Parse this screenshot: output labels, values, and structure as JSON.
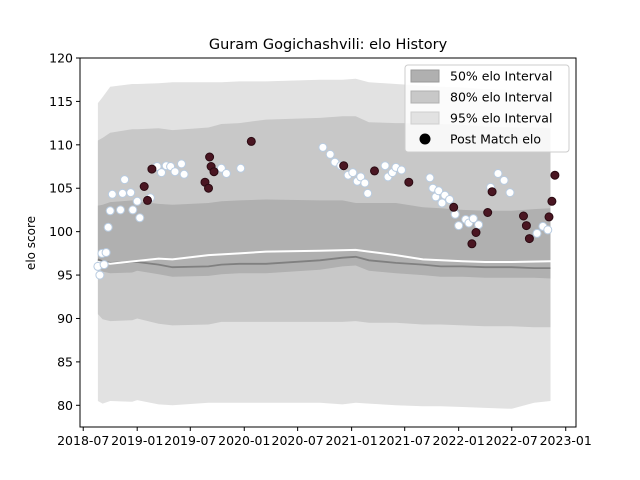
{
  "chart_data": {
    "type": "area",
    "title": "Guram Gogichashvili: elo History",
    "xlabel": "",
    "ylabel": "elo score",
    "xlim": [
      "2018-06-20",
      "2023-02-05"
    ],
    "ylim": [
      77.5,
      120
    ],
    "x_ticks": [
      "2018-07",
      "2019-01",
      "2019-07",
      "2020-01",
      "2020-07",
      "2021-01",
      "2021-07",
      "2022-01",
      "2022-07",
      "2023-01"
    ],
    "y_ticks": [
      80,
      85,
      90,
      95,
      100,
      105,
      110,
      115,
      120
    ],
    "legend_position": "top-right",
    "legend": [
      {
        "label": "50% elo Interval",
        "color": "#b0b0b0"
      },
      {
        "label": "80% elo Interval",
        "color": "#c8c8c8"
      },
      {
        "label": "95% elo Interval",
        "color": "#e2e2e2"
      },
      {
        "label": "Post Match elo",
        "color": "#000000"
      }
    ],
    "bands": {
      "x": [
        "2018-08-20",
        "2018-09-05",
        "2018-10-01",
        "2018-12-15",
        "2019-01-01",
        "2019-03-15",
        "2019-05-01",
        "2019-09-01",
        "2019-10-15",
        "2019-12-15",
        "2020-03-15",
        "2020-09-15",
        "2020-12-01",
        "2021-01-15",
        "2021-03-01",
        "2021-06-01",
        "2021-09-01",
        "2021-11-01",
        "2022-01-15",
        "2022-04-01",
        "2022-07-01",
        "2022-09-15",
        "2022-11-10"
      ],
      "center": [
        96.8,
        96.6,
        96.4,
        96.5,
        96.5,
        96.2,
        95.9,
        96.0,
        96.2,
        96.3,
        96.3,
        96.7,
        97.0,
        97.1,
        96.7,
        96.4,
        96.2,
        96.0,
        96.0,
        95.9,
        95.9,
        95.8,
        95.8
      ],
      "q50_low": [
        95.8,
        95.4,
        95.2,
        95.3,
        95.5,
        95.1,
        94.8,
        94.9,
        95.1,
        95.2,
        95.2,
        95.6,
        96.0,
        96.1,
        95.5,
        95.2,
        95.0,
        94.8,
        94.8,
        94.7,
        94.7,
        94.7,
        94.6
      ],
      "q50_high": [
        103.0,
        103.1,
        103.4,
        103.6,
        103.5,
        103.2,
        103.1,
        103.3,
        103.5,
        103.6,
        103.7,
        103.6,
        103.6,
        103.3,
        103.3,
        103.3,
        102.8,
        102.7,
        102.5,
        102.4,
        102.4,
        102.6,
        102.7
      ],
      "q80_low": [
        90.5,
        89.9,
        89.7,
        89.8,
        90.0,
        89.4,
        89.2,
        89.3,
        89.6,
        89.6,
        89.6,
        89.6,
        89.6,
        89.7,
        89.5,
        89.5,
        89.3,
        89.3,
        89.2,
        89.1,
        89.1,
        89.0,
        89.0
      ],
      "q80_high": [
        110.5,
        110.8,
        111.4,
        111.8,
        111.8,
        111.9,
        111.7,
        112.0,
        112.4,
        112.5,
        112.9,
        113.1,
        113.3,
        113.3,
        112.6,
        112.5,
        112.5,
        112.4,
        112.3,
        112.1,
        112.0,
        112.0,
        111.9
      ],
      "q95_low": [
        85.0,
        84.6,
        84.6,
        84.7,
        84.8,
        84.2,
        83.9,
        84.2,
        84.3,
        84.3,
        84.4,
        84.5,
        84.4,
        84.5,
        84.3,
        84.1,
        83.9,
        83.8,
        83.7,
        83.7,
        83.7,
        83.8,
        83.8
      ],
      "q95_high": [
        114.8,
        115.5,
        116.7,
        117.0,
        117.0,
        117.1,
        117.2,
        117.2,
        117.2,
        117.3,
        117.3,
        117.5,
        117.5,
        117.6,
        117.2,
        117.0,
        116.8,
        116.7,
        116.6,
        116.4,
        116.3,
        116.3,
        116.2
      ],
      "q95_low_dips": [
        80.5,
        80.2,
        80.5,
        80.4,
        80.6,
        80.1,
        80.0,
        80.3,
        80.3,
        80.3,
        80.3,
        80.3,
        80.1,
        80.3,
        80.2,
        80.0,
        79.9,
        79.9,
        79.8,
        79.7,
        79.6,
        80.3,
        80.5
      ]
    },
    "mean_line": {
      "x": [
        "2018-08-20",
        "2018-10-01",
        "2019-03-15",
        "2019-05-01",
        "2019-09-01",
        "2019-12-15",
        "2020-03-15",
        "2020-09-15",
        "2021-01-15",
        "2021-03-01",
        "2021-06-01",
        "2021-09-01",
        "2022-01-15",
        "2022-04-01",
        "2022-07-01",
        "2022-11-10"
      ],
      "values": [
        96.5,
        96.3,
        96.9,
        96.8,
        97.3,
        97.5,
        97.7,
        97.8,
        97.9,
        97.7,
        97.3,
        96.8,
        96.6,
        96.5,
        96.5,
        96.6
      ]
    },
    "series": [
      {
        "kind": "win",
        "points": [
          [
            "2018-08-20",
            96.0
          ],
          [
            "2018-08-27",
            95.0
          ],
          [
            "2018-09-03",
            97.5
          ],
          [
            "2018-09-10",
            96.2
          ],
          [
            "2018-09-17",
            97.6
          ],
          [
            "2018-09-24",
            100.5
          ],
          [
            "2018-10-01",
            102.4
          ],
          [
            "2018-10-08",
            104.3
          ],
          [
            "2018-11-05",
            102.5
          ],
          [
            "2018-11-12",
            104.4
          ],
          [
            "2018-11-19",
            106.0
          ],
          [
            "2018-12-10",
            104.5
          ],
          [
            "2018-12-17",
            102.5
          ],
          [
            "2019-01-01",
            103.5
          ],
          [
            "2019-01-10",
            101.6
          ],
          [
            "2019-02-15",
            103.9
          ],
          [
            "2019-03-10",
            107.5
          ],
          [
            "2019-03-25",
            106.8
          ],
          [
            "2019-04-10",
            107.6
          ],
          [
            "2019-04-25",
            107.5
          ],
          [
            "2019-05-10",
            106.9
          ],
          [
            "2019-06-01",
            107.8
          ],
          [
            "2019-06-10",
            106.6
          ],
          [
            "2019-10-15",
            107.3
          ],
          [
            "2019-11-01",
            106.7
          ],
          [
            "2019-12-20",
            107.3
          ],
          [
            "2020-09-25",
            109.7
          ],
          [
            "2020-10-20",
            108.9
          ],
          [
            "2020-11-05",
            108.0
          ],
          [
            "2020-11-25",
            107.6
          ],
          [
            "2020-12-20",
            106.5
          ],
          [
            "2021-01-05",
            106.8
          ],
          [
            "2021-01-20",
            105.8
          ],
          [
            "2021-02-01",
            106.3
          ],
          [
            "2021-02-15",
            105.6
          ],
          [
            "2021-02-25",
            104.4
          ],
          [
            "2021-04-25",
            107.6
          ],
          [
            "2021-05-05",
            106.3
          ],
          [
            "2021-05-20",
            106.8
          ],
          [
            "2021-06-01",
            107.4
          ],
          [
            "2021-06-20",
            107.1
          ],
          [
            "2021-09-25",
            106.2
          ],
          [
            "2021-10-05",
            105.0
          ],
          [
            "2021-10-15",
            104.0
          ],
          [
            "2021-10-25",
            104.7
          ],
          [
            "2021-11-05",
            103.3
          ],
          [
            "2021-11-15",
            104.2
          ],
          [
            "2021-12-01",
            103.7
          ],
          [
            "2021-12-20",
            102.0
          ],
          [
            "2022-01-01",
            100.7
          ],
          [
            "2022-01-25",
            101.4
          ],
          [
            "2022-02-05",
            101.0
          ],
          [
            "2022-02-20",
            101.5
          ],
          [
            "2022-03-10",
            100.8
          ],
          [
            "2022-04-20",
            105.1
          ],
          [
            "2022-05-15",
            106.7
          ],
          [
            "2022-06-05",
            105.9
          ],
          [
            "2022-06-25",
            104.5
          ],
          [
            "2022-09-25",
            99.8
          ],
          [
            "2022-10-15",
            100.6
          ],
          [
            "2022-11-01",
            100.2
          ]
        ]
      },
      {
        "kind": "loss",
        "points": [
          [
            "2019-01-25",
            105.2
          ],
          [
            "2019-02-05",
            103.6
          ],
          [
            "2019-02-20",
            107.2
          ],
          [
            "2019-08-20",
            105.7
          ],
          [
            "2019-09-01",
            105.0
          ],
          [
            "2019-09-05",
            108.6
          ],
          [
            "2019-09-10",
            107.5
          ],
          [
            "2019-09-20",
            106.9
          ],
          [
            "2020-01-25",
            110.4
          ],
          [
            "2020-12-05",
            107.6
          ],
          [
            "2021-03-20",
            107.0
          ],
          [
            "2021-07-15",
            105.7
          ],
          [
            "2021-12-15",
            102.8
          ],
          [
            "2022-02-15",
            98.6
          ],
          [
            "2022-03-01",
            99.9
          ],
          [
            "2022-04-10",
            102.2
          ],
          [
            "2022-04-25",
            104.6
          ],
          [
            "2022-08-10",
            101.8
          ],
          [
            "2022-08-20",
            100.7
          ],
          [
            "2022-08-30",
            99.2
          ],
          [
            "2022-11-05",
            101.7
          ],
          [
            "2022-11-15",
            103.5
          ],
          [
            "2022-11-25",
            106.5
          ]
        ]
      }
    ]
  }
}
